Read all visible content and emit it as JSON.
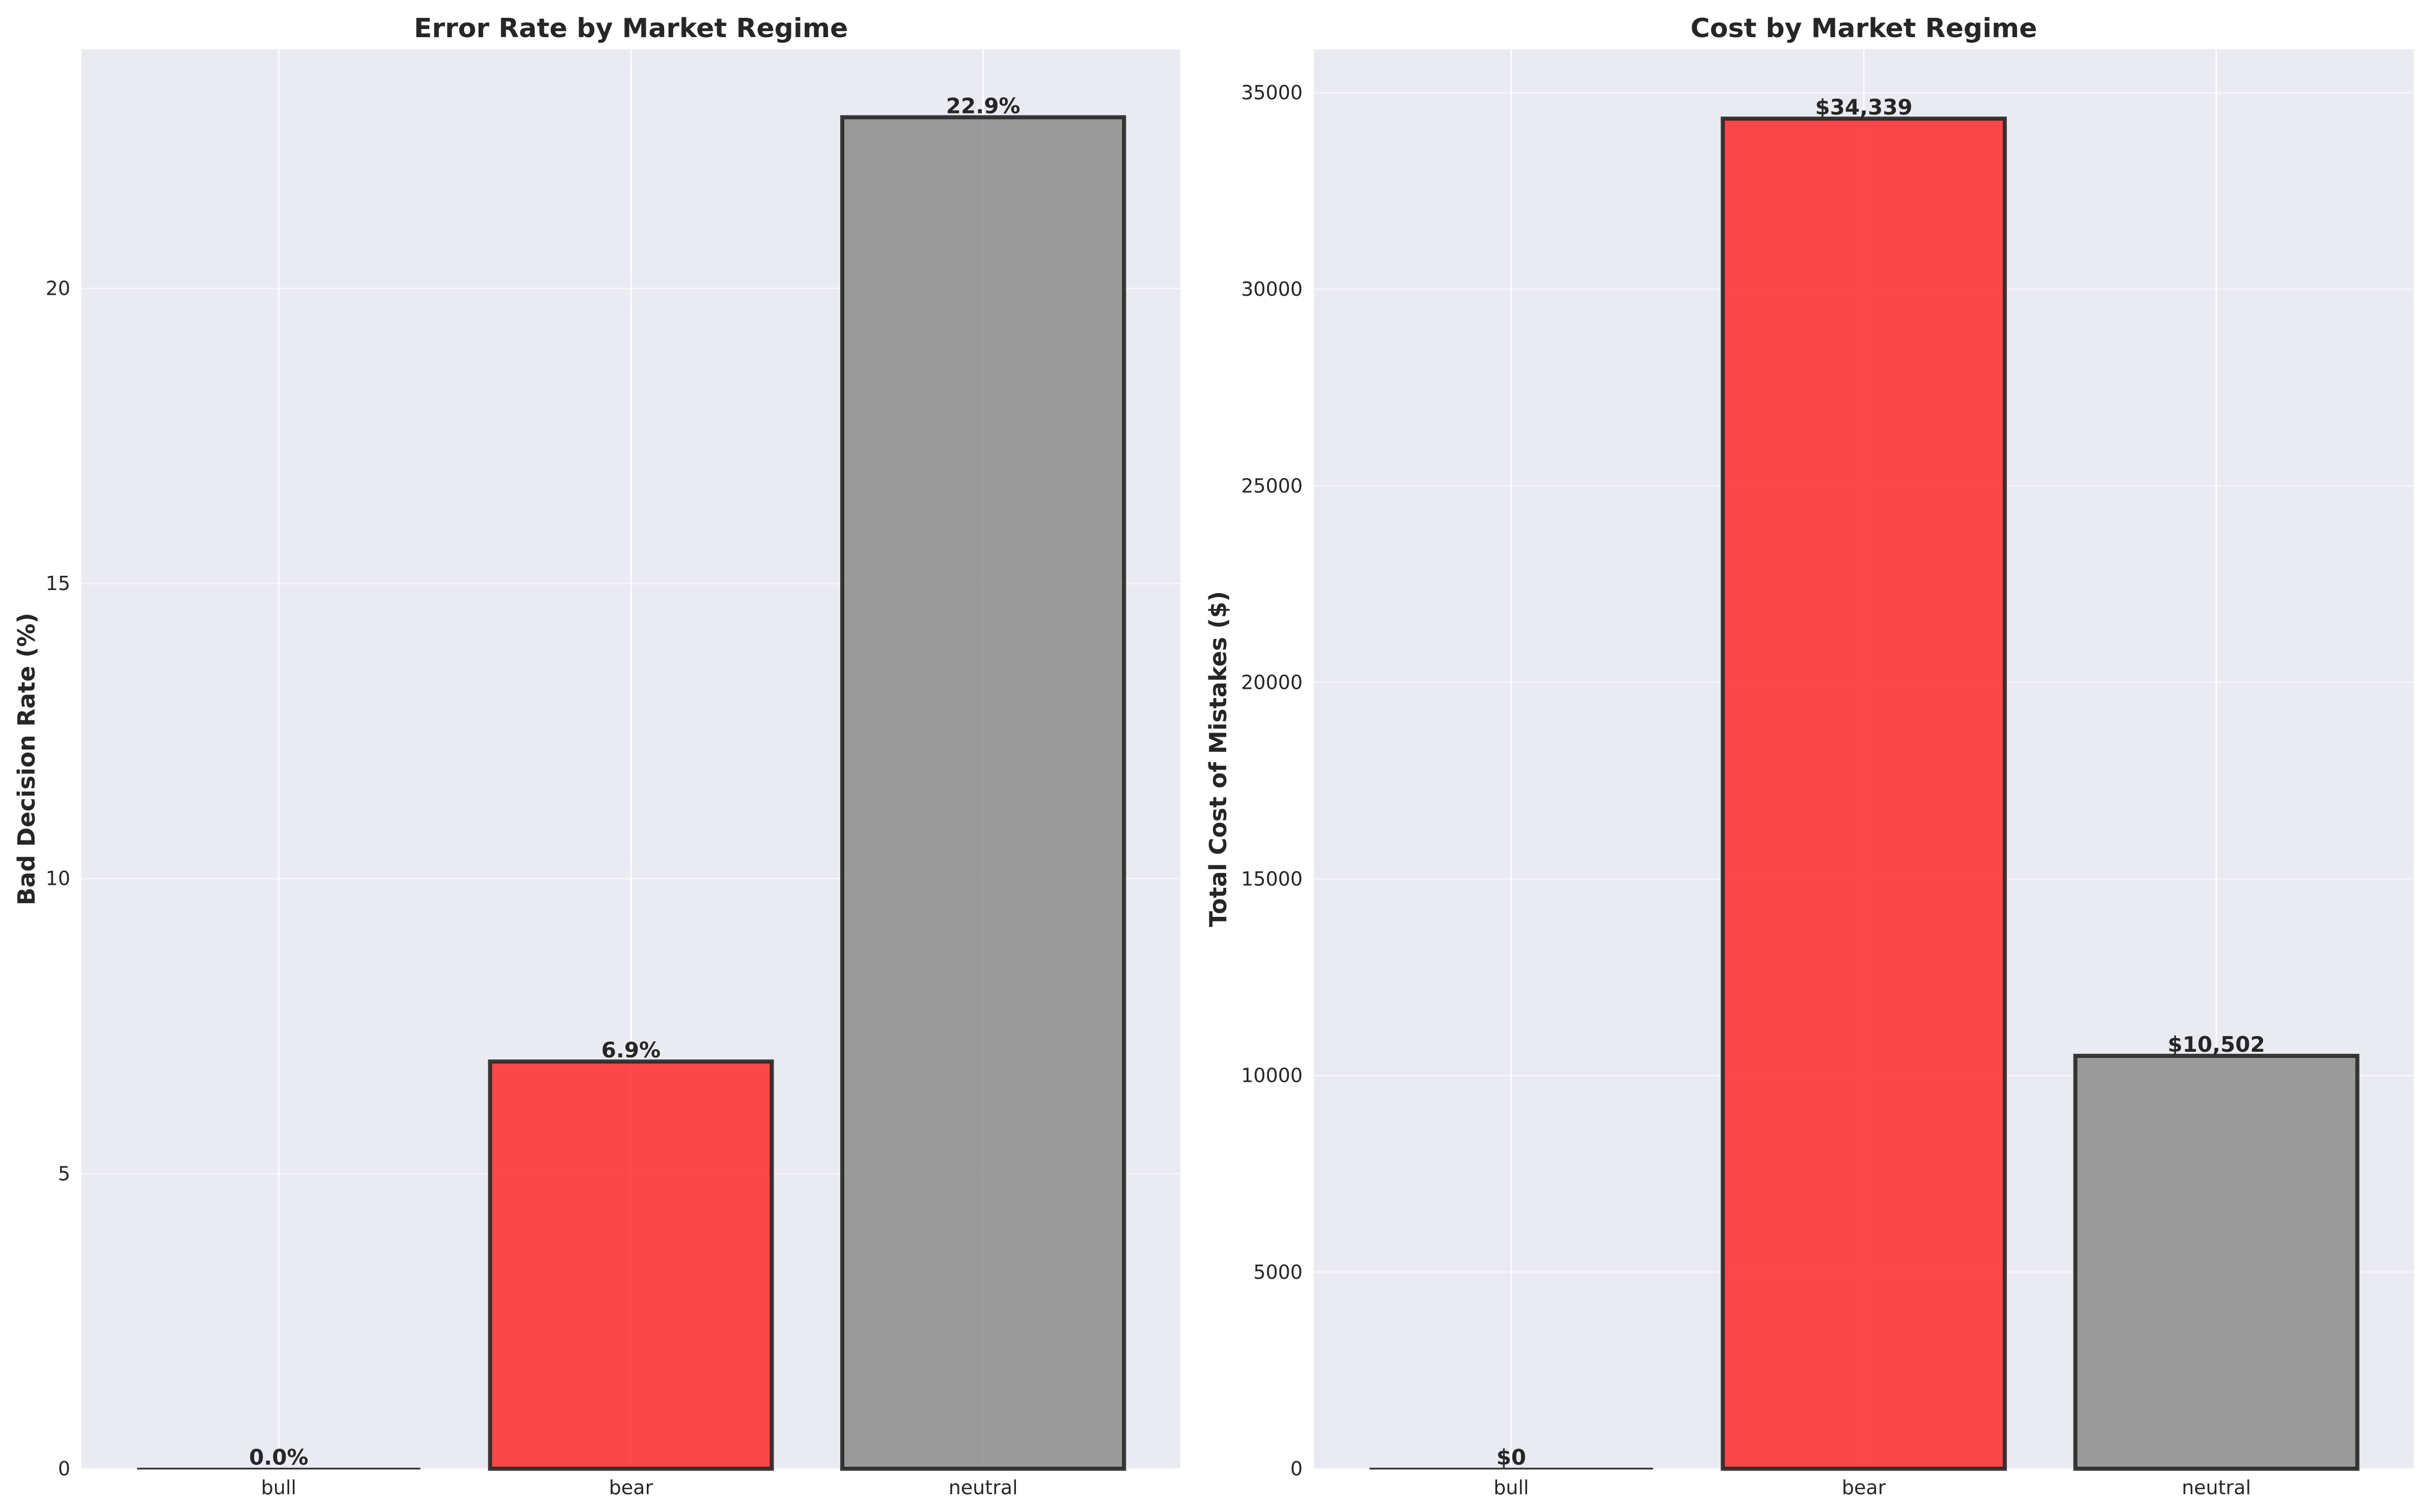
{
  "chart_data": [
    {
      "type": "bar",
      "title": "Error Rate by Market Regime",
      "xlabel": "",
      "ylabel": "Bad Decision Rate (%)",
      "categories": [
        "bull",
        "bear",
        "neutral"
      ],
      "values": [
        0.0,
        6.9,
        22.9
      ],
      "data_labels": [
        "0.0%",
        "6.9%",
        "22.9%"
      ],
      "colors": [
        "#808080",
        "#ff2a2a",
        "#8c8c8c"
      ],
      "ylim": [
        0,
        24.05
      ],
      "yticks": [
        0,
        5,
        10,
        15,
        20
      ],
      "ytick_labels": [
        "0",
        "5",
        "10",
        "15",
        "20"
      ],
      "grid": true
    },
    {
      "type": "bar",
      "title": "Cost by Market Regime",
      "xlabel": "",
      "ylabel": "Total Cost of Mistakes ($)",
      "categories": [
        "bull",
        "bear",
        "neutral"
      ],
      "values": [
        0,
        34339,
        10502
      ],
      "data_labels": [
        "$0",
        "$34,339",
        "$10,502"
      ],
      "colors": [
        "#808080",
        "#ff2a2a",
        "#8c8c8c"
      ],
      "ylim": [
        0,
        36100
      ],
      "yticks": [
        0,
        5000,
        10000,
        15000,
        20000,
        25000,
        30000,
        35000
      ],
      "ytick_labels": [
        "0",
        "5000",
        "10000",
        "15000",
        "20000",
        "25000",
        "30000",
        "35000"
      ],
      "grid": true
    }
  ],
  "style": {
    "plot_background": "#eaeaf2",
    "grid_color": "#ffffff",
    "bar_edge_color": "#262626",
    "text_color": "#262626"
  }
}
